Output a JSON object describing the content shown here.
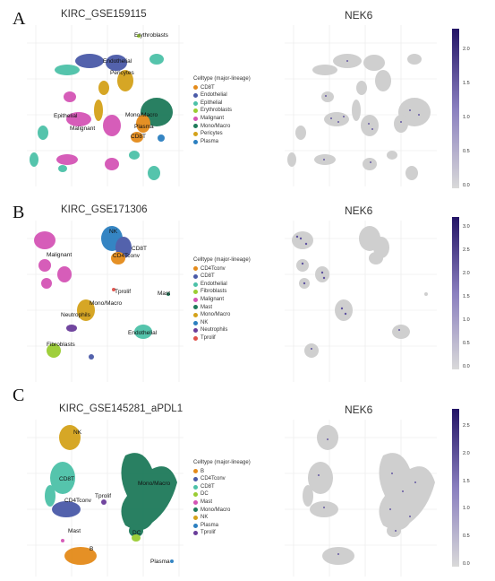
{
  "panels": [
    {
      "letter": "A",
      "left_title": "KIRC_GSE159115",
      "right_title": "NEK6",
      "legend_title": "Celltype (major-lineage)",
      "legend": [
        {
          "name": "CD8T",
          "color": "#e48b1a"
        },
        {
          "name": "Endothelial",
          "color": "#4a5aa8"
        },
        {
          "name": "Epithelial",
          "color": "#4cc1a8"
        },
        {
          "name": "Erythroblasts",
          "color": "#9acd32"
        },
        {
          "name": "Malignant",
          "color": "#d455b6"
        },
        {
          "name": "Mono/Macro",
          "color": "#1e7a5a"
        },
        {
          "name": "Pericytes",
          "color": "#d4a21a"
        },
        {
          "name": "Plasma",
          "color": "#2b7fc0"
        }
      ],
      "cluster_labels": [
        "Erythroblasts",
        "Endothelial",
        "Pericytes",
        "Epithelial",
        "Mono/Macro",
        "Malignant",
        "Plasma",
        "CD8T"
      ],
      "colorbar_ticks": [
        "2.0",
        "1.5",
        "1.0",
        "0.5",
        "0.0"
      ]
    },
    {
      "letter": "B",
      "left_title": "KIRC_GSE171306",
      "right_title": "NEK6",
      "legend_title": "Celltype (major-lineage)",
      "legend": [
        {
          "name": "CD4Tconv",
          "color": "#e48b1a"
        },
        {
          "name": "CD8T",
          "color": "#4a5aa8"
        },
        {
          "name": "Endothelial",
          "color": "#4cc1a8"
        },
        {
          "name": "Fibroblasts",
          "color": "#9acd32"
        },
        {
          "name": "Malignant",
          "color": "#d455b6"
        },
        {
          "name": "Mast",
          "color": "#1e7a5a"
        },
        {
          "name": "Mono/Macro",
          "color": "#d4a21a"
        },
        {
          "name": "NK",
          "color": "#2b7fc0"
        },
        {
          "name": "Neutrophils",
          "color": "#6a3d9a"
        },
        {
          "name": "Tprolif",
          "color": "#e0524a"
        }
      ],
      "cluster_labels": [
        "NK",
        "CD8T",
        "CD4Tconv",
        "Malignant",
        "Tprolif",
        "Mast",
        "Mono/Macro",
        "Neutrophils",
        "Endothelial",
        "Fibroblasts"
      ],
      "colorbar_ticks": [
        "3.0",
        "2.5",
        "2.0",
        "1.5",
        "1.0",
        "0.5",
        "0.0"
      ]
    },
    {
      "letter": "C",
      "left_title": "KIRC_GSE145281_aPDL1",
      "right_title": "NEK6",
      "legend_title": "Celltype (major-lineage)",
      "legend": [
        {
          "name": "B",
          "color": "#e48b1a"
        },
        {
          "name": "CD4Tconv",
          "color": "#4a5aa8"
        },
        {
          "name": "CD8T",
          "color": "#4cc1a8"
        },
        {
          "name": "DC",
          "color": "#9acd32"
        },
        {
          "name": "Mast",
          "color": "#d455b6"
        },
        {
          "name": "Mono/Macro",
          "color": "#1e7a5a"
        },
        {
          "name": "NK",
          "color": "#d4a21a"
        },
        {
          "name": "Plasma",
          "color": "#2b7fc0"
        },
        {
          "name": "Tprolif",
          "color": "#6a3d9a"
        }
      ],
      "cluster_labels": [
        "NK",
        "CD8T",
        "CD4Tconv",
        "Tprolif",
        "Mono/Macro",
        "Mast",
        "DC",
        "B",
        "Plasma"
      ],
      "colorbar_ticks": [
        "2.5",
        "2.0",
        "1.5",
        "1.0",
        "0.5",
        "0.0"
      ]
    }
  ],
  "colors": {
    "grey_cells": "#c8c8c8",
    "expr_high": "#2a1a78",
    "expr_low": "#d9d9d9"
  }
}
